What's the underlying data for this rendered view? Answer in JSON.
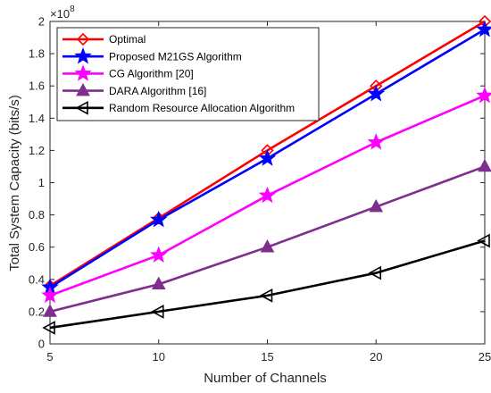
{
  "chart_data": {
    "type": "line",
    "x": [
      5,
      10,
      15,
      20,
      25
    ],
    "series": [
      {
        "name": "Optimal",
        "values": [
          36000000,
          78000000,
          120000000,
          160000000,
          200000000
        ],
        "color": "#ff0000",
        "marker": "diamond"
      },
      {
        "name": "Proposed M21GS Algorithm",
        "values": [
          35000000,
          77000000,
          115000000,
          155000000,
          195000000
        ],
        "color": "#0000ff",
        "marker": "star"
      },
      {
        "name": "CG Algorithm [20]",
        "values": [
          30000000,
          55000000,
          92000000,
          125000000,
          154000000
        ],
        "color": "#ff00ff",
        "marker": "star"
      },
      {
        "name": "DARA Algorithm [16]",
        "values": [
          20000000,
          37000000,
          60000000,
          85000000,
          110000000
        ],
        "color": "#7e2f8e",
        "marker": "triangle-up"
      },
      {
        "name": "Random Resource Allocation Algorithm",
        "values": [
          10000000,
          20000000,
          30000000,
          44000000,
          64000000
        ],
        "color": "#000000",
        "marker": "triangle-left"
      }
    ],
    "xlabel": "Number of Channels",
    "ylabel": "Total System Capacity (bits/s)",
    "xlim": [
      5,
      25
    ],
    "ylim": [
      0,
      200000000
    ],
    "x_ticks": [
      5,
      10,
      15,
      20,
      25
    ],
    "x_tick_labels": [
      "5",
      "10",
      "15",
      "20",
      "25"
    ],
    "y_ticks": [
      0,
      20000000,
      40000000,
      60000000,
      80000000,
      100000000,
      120000000,
      140000000,
      160000000,
      180000000,
      200000000
    ],
    "y_tick_labels": [
      "0",
      "0.2",
      "0.4",
      "0.6",
      "0.8",
      "1",
      "1.2",
      "1.4",
      "1.6",
      "1.8",
      "2"
    ],
    "y_exponent_label": "×10",
    "y_exponent_power": "8",
    "legend_position": "top-left",
    "grid": false
  }
}
